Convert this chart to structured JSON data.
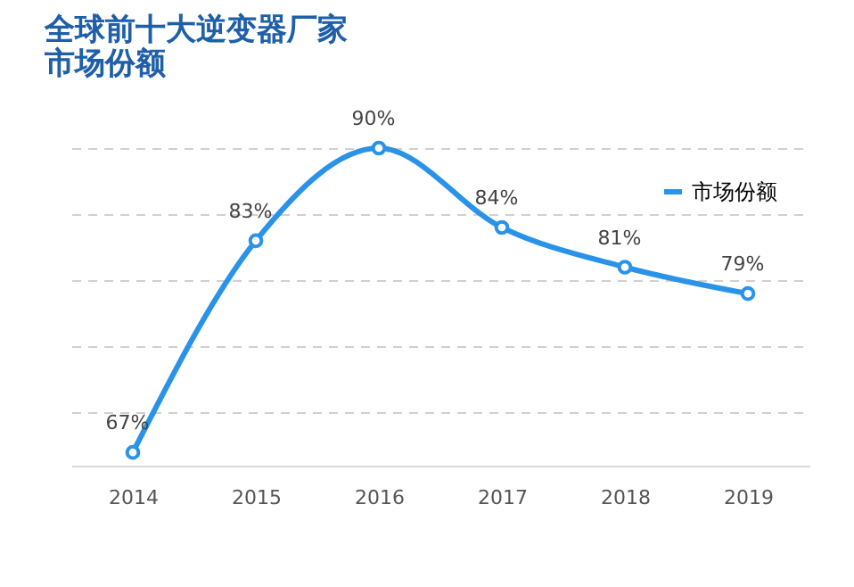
{
  "chart_data": {
    "type": "line",
    "title": "全球前十大逆变器厂家市场份额",
    "categories": [
      "2014",
      "2015",
      "2016",
      "2017",
      "2018",
      "2019"
    ],
    "series": [
      {
        "name": "市场份额",
        "color": "#2a93e8",
        "values": [
          67,
          83,
          90,
          84,
          81,
          79
        ],
        "value_labels": [
          "67%",
          "83%",
          "90%",
          "84%",
          "81%",
          "79%"
        ]
      }
    ],
    "grid": "y",
    "legend": "top right",
    "tick_labels": "x",
    "marker": "circle",
    "line_style": "solid"
  }
}
